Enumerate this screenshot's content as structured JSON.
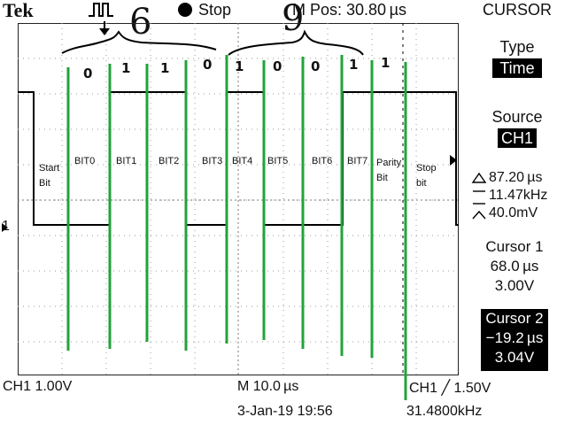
{
  "header": {
    "brand": "Tek",
    "run_state": "Stop",
    "mpos": "M Pos: 30.80 µs",
    "annotations": [
      "6",
      "9"
    ]
  },
  "panel": {
    "title": "CURSOR",
    "type_label": "Type",
    "type_value": "Time",
    "source_label": "Source",
    "source_value": "CH1",
    "delta_t": "87.20 µs",
    "inv_delta_t": "11.47kHz",
    "delta_v": "40.0mV",
    "cursor1": {
      "label": "Cursor 1",
      "time": "68.0 µs",
      "volts": "3.00V"
    },
    "cursor2": {
      "label": "Cursor 2",
      "time": "−19.2 µs",
      "volts": "3.04V"
    }
  },
  "footer": {
    "ch1_scale": "CH1  1.00V",
    "timebase": "M 10.0 µs",
    "date": "3-Jan-19 19:56",
    "trigger": "CH1 ╱ 1.50V",
    "freq": "31.4800kHz"
  },
  "screen": {
    "ch_marker": "1",
    "bit_labels": [
      {
        "text": "Start\nBit"
      },
      {
        "text": "BIT0"
      },
      {
        "text": "BIT1"
      },
      {
        "text": "BIT2"
      },
      {
        "text": "BIT3"
      },
      {
        "text": "BIT4"
      },
      {
        "text": "BIT5"
      },
      {
        "text": "BIT6"
      },
      {
        "text": "BIT7"
      },
      {
        "text": "Parity\nBit"
      },
      {
        "text": "Stop\nbit"
      }
    ],
    "bit_values": [
      "0",
      "1",
      "1",
      "0",
      "1",
      "0",
      "0",
      "1",
      "1"
    ]
  },
  "colors": {
    "marker_lines": "#22a33a",
    "trace": "#000000"
  }
}
